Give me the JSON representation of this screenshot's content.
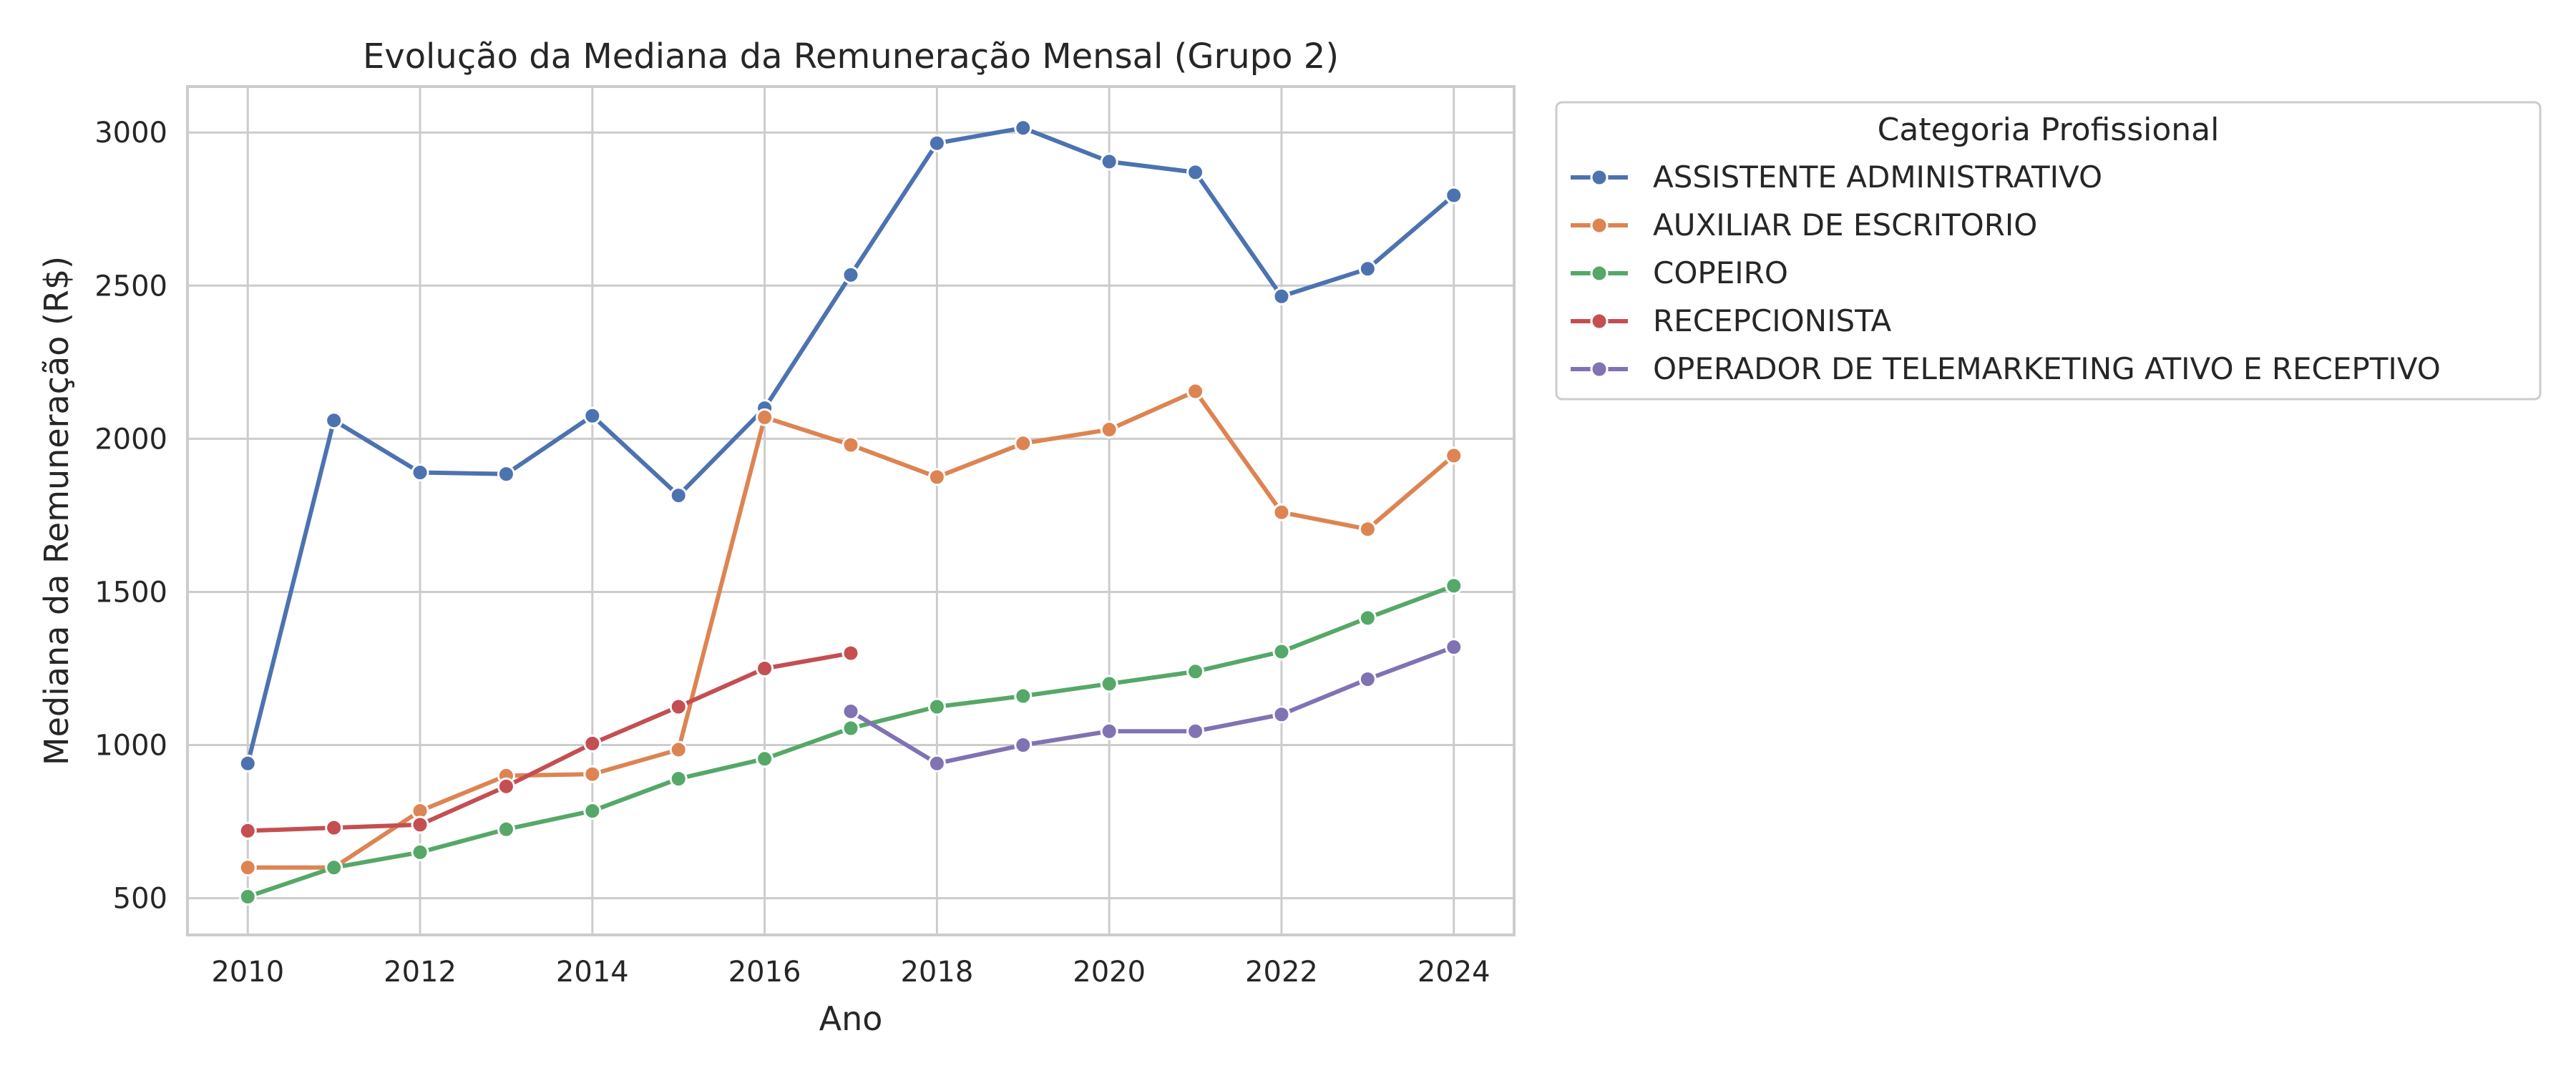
{
  "chart_data": {
    "type": "line",
    "title": "Evolução da Mediana da Remuneração Mensal (Grupo 2)",
    "xlabel": "Ano",
    "ylabel": "Mediana da Remuneração (R$)",
    "xlim": [
      2009.3,
      2024.7
    ],
    "ylim": [
      380,
      3150
    ],
    "xticks": [
      2010,
      2012,
      2014,
      2016,
      2018,
      2020,
      2022,
      2024
    ],
    "yticks": [
      500,
      1000,
      1500,
      2000,
      2500,
      3000
    ],
    "grid": true,
    "legend": {
      "title": "Categoria Profissional",
      "placement": "outside-top-right"
    },
    "series": [
      {
        "name": "ASSISTENTE ADMINISTRATIVO",
        "color": "#4c72b0",
        "x": [
          2010,
          2011,
          2012,
          2013,
          2014,
          2015,
          2016,
          2017,
          2018,
          2019,
          2020,
          2021,
          2022,
          2023,
          2024
        ],
        "y": [
          940,
          2060,
          1890,
          1885,
          2075,
          1815,
          2100,
          2535,
          2965,
          3015,
          2905,
          2870,
          2465,
          2555,
          2795
        ]
      },
      {
        "name": "AUXILIAR DE ESCRITORIO",
        "color": "#dd8452",
        "x": [
          2010,
          2011,
          2012,
          2013,
          2014,
          2015,
          2016,
          2017,
          2018,
          2019,
          2020,
          2021,
          2022,
          2023,
          2024
        ],
        "y": [
          600,
          600,
          785,
          900,
          905,
          985,
          2070,
          1980,
          1875,
          1985,
          2030,
          2155,
          1760,
          1705,
          1945
        ]
      },
      {
        "name": "COPEIRO",
        "color": "#55a868",
        "x": [
          2010,
          2011,
          2012,
          2013,
          2014,
          2015,
          2016,
          2017,
          2018,
          2019,
          2020,
          2021,
          2022,
          2023,
          2024
        ],
        "y": [
          505,
          600,
          650,
          725,
          785,
          890,
          955,
          1055,
          1125,
          1160,
          1200,
          1240,
          1305,
          1415,
          1520
        ]
      },
      {
        "name": "RECEPCIONISTA",
        "color": "#c44e52",
        "x": [
          2010,
          2011,
          2012,
          2013,
          2014,
          2015,
          2016,
          2017
        ],
        "y": [
          720,
          730,
          740,
          865,
          1005,
          1125,
          1250,
          1300
        ]
      },
      {
        "name": "OPERADOR DE TELEMARKETING ATIVO E RECEPTIVO",
        "color": "#8172b3",
        "x": [
          2017,
          2018,
          2019,
          2020,
          2021,
          2022,
          2023,
          2024
        ],
        "y": [
          1110,
          940,
          1000,
          1045,
          1045,
          1100,
          1215,
          1320
        ]
      }
    ]
  }
}
